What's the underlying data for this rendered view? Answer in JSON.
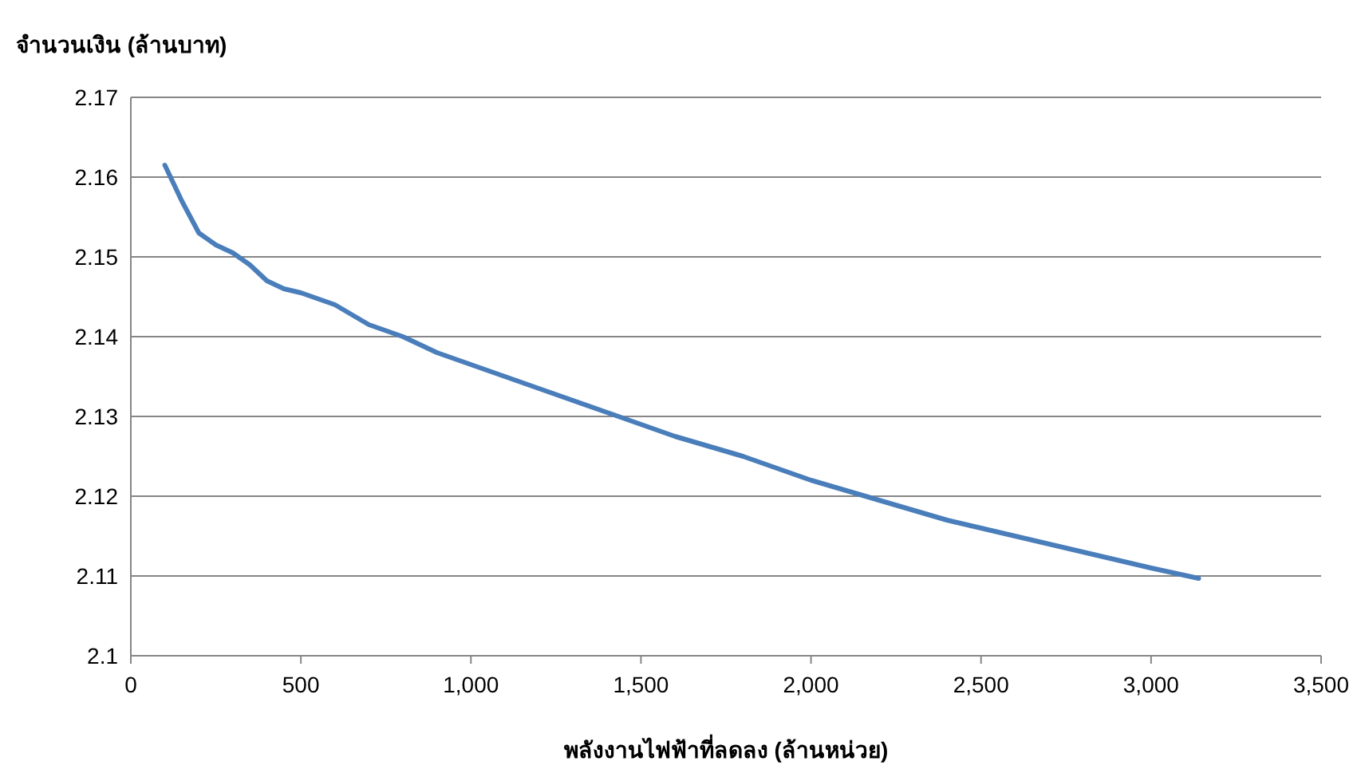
{
  "chart_data": {
    "type": "line",
    "ylabel": "จำนวนเงิน (ล้านบาท)",
    "xlabel": "พลังงานไฟฟ้าที่ลดลง (ล้านหน่วย)",
    "x": [
      100,
      150,
      200,
      250,
      300,
      350,
      400,
      450,
      500,
      600,
      700,
      800,
      900,
      1000,
      1200,
      1400,
      1600,
      1800,
      2000,
      2200,
      2400,
      2600,
      2800,
      3000,
      3140
    ],
    "series": [
      {
        "color": "#4a7ebb",
        "values": [
          2.1615,
          2.157,
          2.153,
          2.1515,
          2.1505,
          2.149,
          2.147,
          2.146,
          2.1455,
          2.144,
          2.1415,
          2.14,
          2.138,
          2.1365,
          2.1335,
          2.1305,
          2.1275,
          2.125,
          2.122,
          2.1195,
          2.117,
          2.115,
          2.113,
          2.111,
          2.1097
        ]
      }
    ],
    "xlim": [
      0,
      3500
    ],
    "xticks": [
      0,
      500,
      {
        "value": 1000,
        "label": "1,000"
      },
      {
        "value": 1500,
        "label": "1,500"
      },
      {
        "value": 2000,
        "label": "2,000"
      },
      {
        "value": 2500,
        "label": "2,500"
      },
      {
        "value": 3000,
        "label": "3,000"
      },
      {
        "value": 3500,
        "label": "3,500"
      }
    ],
    "ylim": [
      2.1,
      2.17
    ],
    "yticks": [
      2.1,
      2.11,
      2.12,
      2.13,
      2.14,
      2.15,
      2.16,
      2.17
    ],
    "grid": "y",
    "marker": "none",
    "line_style": "solid"
  }
}
